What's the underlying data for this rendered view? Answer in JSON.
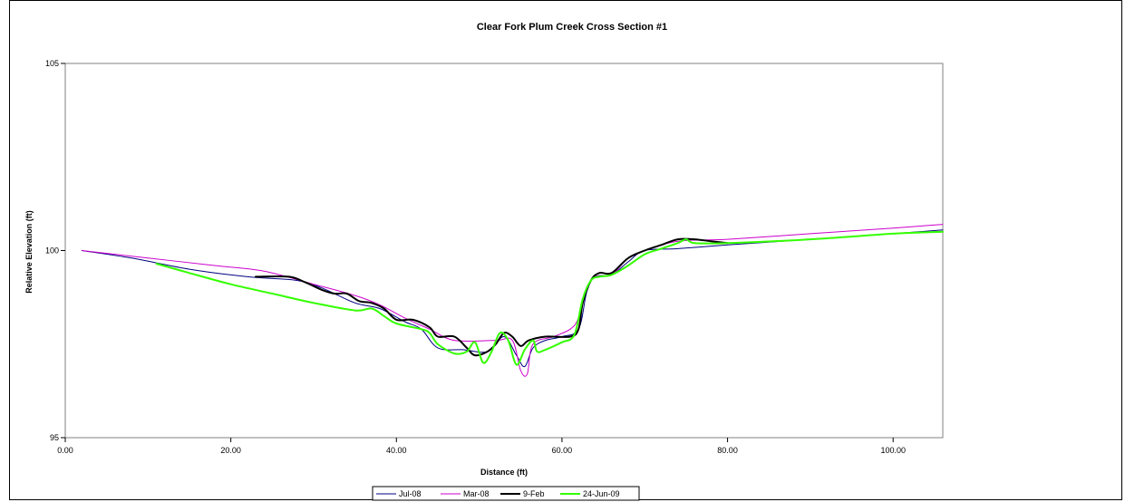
{
  "chart_data": {
    "type": "line",
    "title": "Clear Fork Plum Creek Cross Section #1",
    "xlabel": "Distance (ft)",
    "ylabel": "Relative Elevation (ft)",
    "xlim": [
      0,
      106
    ],
    "ylim": [
      95,
      105
    ],
    "x_ticks": [
      0,
      20,
      40,
      60,
      80,
      100
    ],
    "x_tick_labels": [
      "0.00",
      "20.00",
      "40.00",
      "60.00",
      "80.00",
      "100.00"
    ],
    "y_ticks": [
      95,
      100,
      105
    ],
    "y_tick_labels": [
      "95",
      "100",
      "105"
    ],
    "grid": false,
    "legend_position": "bottom",
    "series": [
      {
        "name": "Jul-08",
        "color": "#000080",
        "line_width": 1,
        "points": [
          [
            2,
            100
          ],
          [
            8,
            99.8
          ],
          [
            15,
            99.5
          ],
          [
            22,
            99.3
          ],
          [
            28,
            99.2
          ],
          [
            31,
            99.0
          ],
          [
            35,
            98.6
          ],
          [
            38,
            98.45
          ],
          [
            41,
            98.1
          ],
          [
            43,
            97.9
          ],
          [
            45,
            97.4
          ],
          [
            48,
            97.35
          ],
          [
            51,
            97.3
          ],
          [
            53,
            97.7
          ],
          [
            54.5,
            97.2
          ],
          [
            55.5,
            96.9
          ],
          [
            56.5,
            97.4
          ],
          [
            58,
            97.6
          ],
          [
            60,
            97.7
          ],
          [
            62,
            97.9
          ],
          [
            63,
            98.9
          ],
          [
            64,
            99.3
          ],
          [
            66,
            99.35
          ],
          [
            68,
            99.7
          ],
          [
            70,
            100.0
          ],
          [
            74,
            100.05
          ],
          [
            80,
            100.15
          ],
          [
            90,
            100.3
          ],
          [
            100,
            100.45
          ],
          [
            106,
            100.55
          ]
        ]
      },
      {
        "name": "Mar-08",
        "color": "#cc00cc",
        "line_width": 1,
        "points": [
          [
            2,
            100
          ],
          [
            10,
            99.8
          ],
          [
            18,
            99.6
          ],
          [
            24,
            99.45
          ],
          [
            30,
            99.1
          ],
          [
            35,
            98.8
          ],
          [
            38,
            98.55
          ],
          [
            41,
            98.2
          ],
          [
            44,
            97.9
          ],
          [
            47,
            97.6
          ],
          [
            52,
            97.6
          ],
          [
            54,
            97.6
          ],
          [
            55,
            96.8
          ],
          [
            55.8,
            96.7
          ],
          [
            56.5,
            97.5
          ],
          [
            59,
            97.7
          ],
          [
            61,
            97.9
          ],
          [
            62,
            98.2
          ],
          [
            63,
            99.0
          ],
          [
            64,
            99.3
          ],
          [
            66,
            99.35
          ],
          [
            68,
            99.8
          ],
          [
            70,
            100.0
          ],
          [
            74,
            100.25
          ],
          [
            80,
            100.3
          ],
          [
            90,
            100.45
          ],
          [
            100,
            100.6
          ],
          [
            106,
            100.7
          ]
        ]
      },
      {
        "name": "9-Feb",
        "color": "#000000",
        "line_width": 2,
        "points": [
          [
            23,
            99.3
          ],
          [
            27,
            99.3
          ],
          [
            29,
            99.15
          ],
          [
            31,
            98.95
          ],
          [
            32.5,
            98.85
          ],
          [
            34,
            98.85
          ],
          [
            35.5,
            98.65
          ],
          [
            37,
            98.6
          ],
          [
            38.5,
            98.45
          ],
          [
            40,
            98.15
          ],
          [
            42,
            98.15
          ],
          [
            44,
            97.95
          ],
          [
            45,
            97.7
          ],
          [
            47,
            97.7
          ],
          [
            48.5,
            97.4
          ],
          [
            49.5,
            97.2
          ],
          [
            51,
            97.3
          ],
          [
            52,
            97.5
          ],
          [
            53,
            97.8
          ],
          [
            54,
            97.7
          ],
          [
            55,
            97.45
          ],
          [
            56,
            97.6
          ],
          [
            58,
            97.7
          ],
          [
            61,
            97.7
          ],
          [
            62,
            97.9
          ],
          [
            62.5,
            98.6
          ],
          [
            63.5,
            99.2
          ],
          [
            64.5,
            99.4
          ],
          [
            66,
            99.4
          ],
          [
            68,
            99.8
          ],
          [
            70,
            100.0
          ],
          [
            72,
            100.15
          ],
          [
            74,
            100.3
          ],
          [
            76,
            100.3
          ],
          [
            78,
            100.25
          ],
          [
            80,
            100.2
          ]
        ]
      },
      {
        "name": "24-Jun-09",
        "color": "#33ff00",
        "line_width": 2,
        "points": [
          [
            11,
            99.65
          ],
          [
            15,
            99.4
          ],
          [
            20,
            99.1
          ],
          [
            25,
            98.85
          ],
          [
            30,
            98.6
          ],
          [
            35,
            98.4
          ],
          [
            37,
            98.45
          ],
          [
            38.5,
            98.25
          ],
          [
            40,
            98.05
          ],
          [
            43,
            97.9
          ],
          [
            44,
            97.8
          ],
          [
            45,
            97.5
          ],
          [
            47,
            97.25
          ],
          [
            48.5,
            97.3
          ],
          [
            49.5,
            97.55
          ],
          [
            50.5,
            97.0
          ],
          [
            51.5,
            97.3
          ],
          [
            52.5,
            97.8
          ],
          [
            53.5,
            97.6
          ],
          [
            54.5,
            96.95
          ],
          [
            55.5,
            97.35
          ],
          [
            56.5,
            97.6
          ],
          [
            57,
            97.3
          ],
          [
            58,
            97.35
          ],
          [
            60,
            97.55
          ],
          [
            61.5,
            97.75
          ],
          [
            62.5,
            98.7
          ],
          [
            63.5,
            99.2
          ],
          [
            64.5,
            99.3
          ],
          [
            66,
            99.35
          ],
          [
            68,
            99.6
          ],
          [
            70,
            99.9
          ],
          [
            72,
            100.05
          ],
          [
            74,
            100.2
          ],
          [
            75,
            100.3
          ],
          [
            76,
            100.2
          ],
          [
            80,
            100.2
          ],
          [
            90,
            100.3
          ],
          [
            100,
            100.45
          ],
          [
            106,
            100.5
          ]
        ]
      }
    ]
  }
}
